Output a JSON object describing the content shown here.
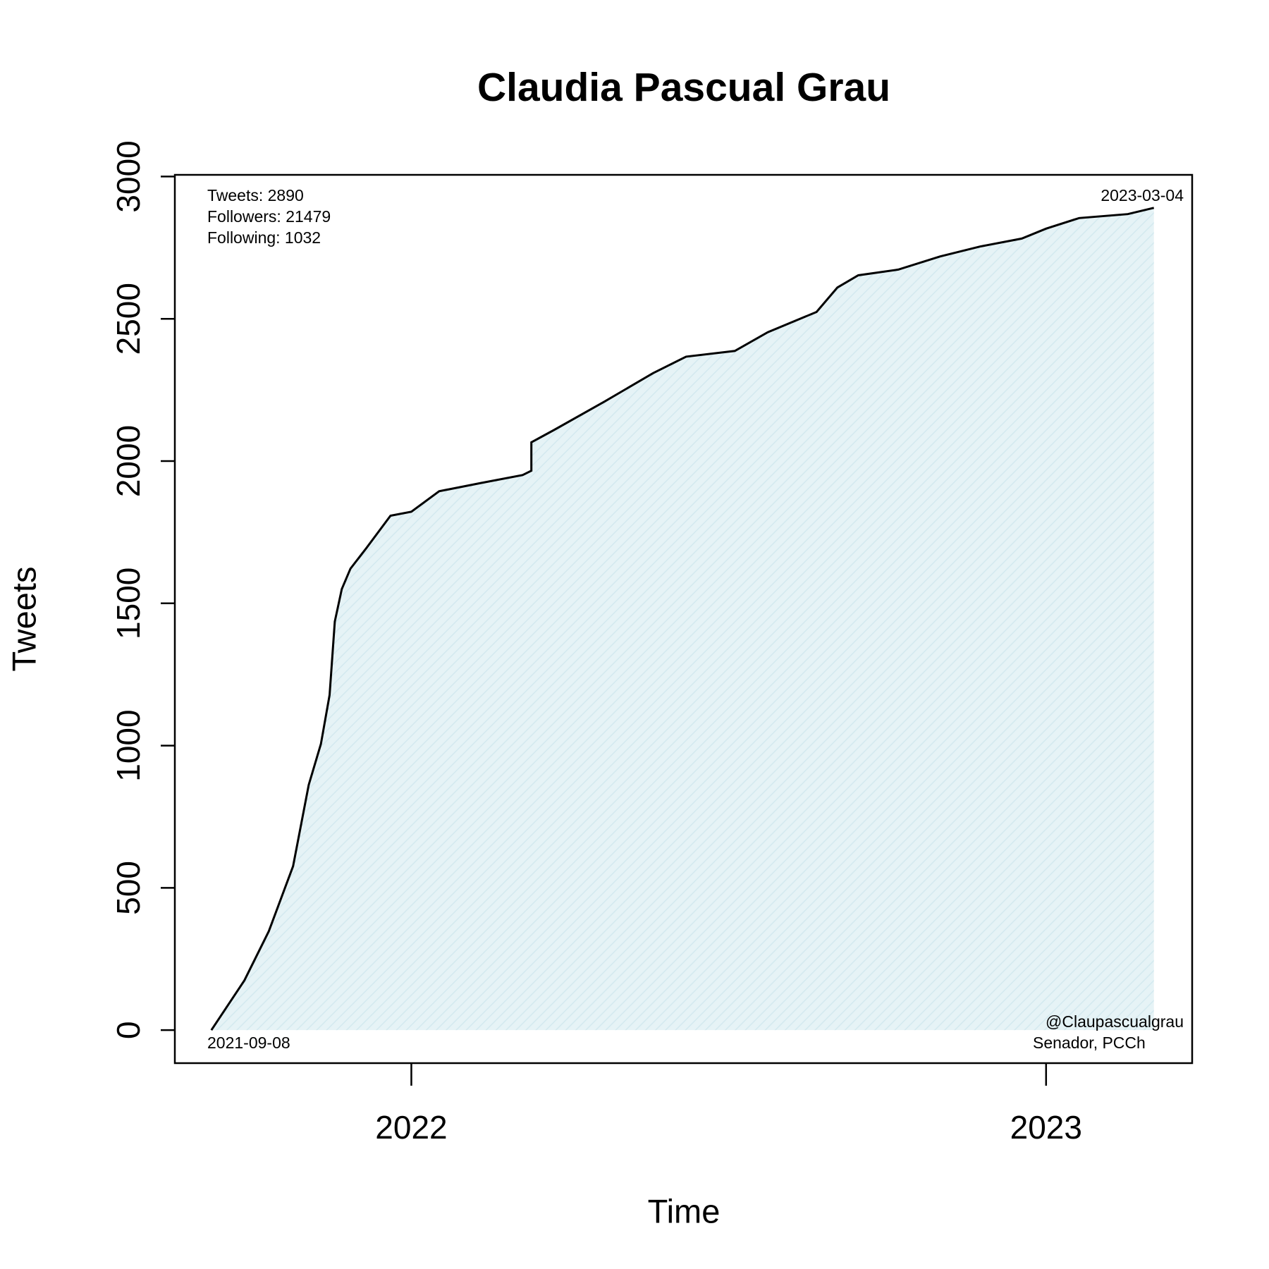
{
  "chart_data": {
    "type": "area",
    "title": "Claudia Pascual Grau",
    "x_label": "Time",
    "y_label": "Tweets",
    "x": [
      "2021-09-08",
      "2021-09-27",
      "2021-10-11",
      "2021-10-25",
      "2021-11-03",
      "2021-11-10",
      "2021-11-15",
      "2021-11-18",
      "2021-11-22",
      "2021-11-27",
      "2021-12-06",
      "2021-12-20",
      "2022-01-01",
      "2022-01-17",
      "2022-02-10",
      "2022-03-06",
      "2022-03-11",
      "2022-03-11",
      "2022-03-24",
      "2022-04-22",
      "2022-05-20",
      "2022-06-08",
      "2022-07-06",
      "2022-07-25",
      "2022-08-22",
      "2022-09-03",
      "2022-09-15",
      "2022-10-08",
      "2022-11-01",
      "2022-11-24",
      "2022-12-18",
      "2023-01-01",
      "2023-01-20",
      "2023-02-17",
      "2023-03-04"
    ],
    "series": [
      {
        "name": "Tweets",
        "color": "#000000",
        "fill": "#e6f3f6",
        "values": [
          0,
          175,
          347,
          576,
          862,
          1006,
          1178,
          1436,
          1550,
          1622,
          1693,
          1808,
          1822,
          1894,
          1923,
          1951,
          1966,
          2066,
          2109,
          2209,
          2309,
          2367,
          2387,
          2453,
          2524,
          2610,
          2653,
          2673,
          2719,
          2754,
          2782,
          2817,
          2854,
          2868,
          2890
        ]
      }
    ],
    "xlim": [
      "2021-08-18",
      "2023-03-26"
    ],
    "xticks": [
      {
        "value": "2022-01-01",
        "label": "2022"
      },
      {
        "value": "2023-01-01",
        "label": "2023"
      }
    ],
    "ylim": [
      -116,
      3006
    ],
    "yticks": [
      0,
      500,
      1000,
      1500,
      2000,
      2500,
      3000
    ],
    "annotations": {
      "stats": [
        "Tweets: 2890",
        "Followers: 21479",
        "Following: 1032"
      ],
      "start": "2021-09-08",
      "end": "2023-03-04",
      "handle": "@Claupascualgrau",
      "role": "Senador, PCCh"
    }
  }
}
